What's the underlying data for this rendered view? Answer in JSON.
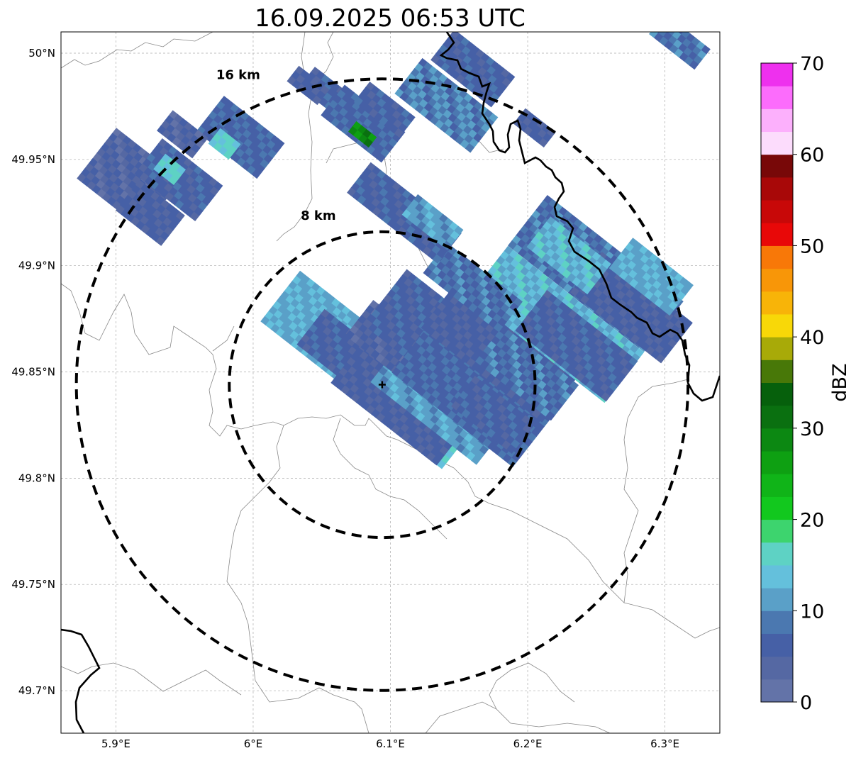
{
  "title": "16.09.2025 06:53 UTC",
  "map": {
    "lon_range": [
      5.86,
      6.34
    ],
    "lat_range": [
      49.68,
      50.01
    ],
    "x_ticks": [
      {
        "value": 5.9,
        "label": "5.9°E"
      },
      {
        "value": 6.0,
        "label": "6°E"
      },
      {
        "value": 6.1,
        "label": "6.1°E"
      },
      {
        "value": 6.2,
        "label": "6.2°E"
      },
      {
        "value": 6.3,
        "label": "6.3°E"
      }
    ],
    "y_ticks": [
      {
        "value": 50.0,
        "label": "50°N"
      },
      {
        "value": 49.95,
        "label": "49.95°N"
      },
      {
        "value": 49.9,
        "label": "49.9°N"
      },
      {
        "value": 49.85,
        "label": "49.85°N"
      },
      {
        "value": 49.8,
        "label": "49.8°N"
      },
      {
        "value": 49.75,
        "label": "49.75°N"
      },
      {
        "value": 49.7,
        "label": "49.7°N"
      }
    ],
    "radar_center": {
      "lon": 6.094,
      "lat": 49.844
    },
    "rings": [
      {
        "radius_km": 8,
        "label": "8 km"
      },
      {
        "radius_km": 16,
        "label": "16 km"
      }
    ]
  },
  "colorbar": {
    "label": "dBZ",
    "ticks": [
      "0",
      "10",
      "20",
      "30",
      "40",
      "50",
      "60",
      "70"
    ],
    "colors": [
      "#6373a8",
      "#5568a3",
      "#4660a6",
      "#4b78b0",
      "#5aa0c8",
      "#64c0dc",
      "#5ed2c4",
      "#3dd46e",
      "#12c81e",
      "#10b418",
      "#0ea012",
      "#0c8812",
      "#0a7010",
      "#06600c",
      "#487808",
      "#a8aa08",
      "#f8d808",
      "#f8b408",
      "#f89608",
      "#f87808",
      "#e80808",
      "#c80808",
      "#a80808",
      "#780808",
      "#fcdcfc",
      "#fcb0fc",
      "#fc6cfc",
      "#ee30ee"
    ]
  },
  "echoes": [
    {
      "lon": 6.085,
      "lat": 49.852,
      "dbz": 12,
      "len_km": 12,
      "wid_km": 3.5
    },
    {
      "lon": 6.07,
      "lat": 49.858,
      "dbz": 6,
      "len_km": 5,
      "wid_km": 2.2
    },
    {
      "lon": 6.115,
      "lat": 49.83,
      "dbz": 14,
      "len_km": 6,
      "wid_km": 2.2
    },
    {
      "lon": 6.11,
      "lat": 49.838,
      "dbz": 5,
      "len_km": 7,
      "wid_km": 3.2
    },
    {
      "lon": 6.135,
      "lat": 49.835,
      "dbz": 11,
      "len_km": 7,
      "wid_km": 2.8
    },
    {
      "lon": 6.1,
      "lat": 49.865,
      "dbz": 4,
      "len_km": 4,
      "wid_km": 2.2
    },
    {
      "lon": 6.145,
      "lat": 49.86,
      "dbz": 6,
      "len_km": 9,
      "wid_km": 3.8
    },
    {
      "lon": 6.16,
      "lat": 49.84,
      "dbz": 7,
      "len_km": 8,
      "wid_km": 3.2
    },
    {
      "lon": 6.18,
      "lat": 49.86,
      "dbz": 5,
      "len_km": 8,
      "wid_km": 3.5
    },
    {
      "lon": 6.2,
      "lat": 49.85,
      "dbz": 8,
      "len_km": 5,
      "wid_km": 2.2
    },
    {
      "lon": 6.175,
      "lat": 49.83,
      "dbz": 6,
      "len_km": 4,
      "wid_km": 2
    },
    {
      "lon": 6.22,
      "lat": 49.872,
      "dbz": 13,
      "len_km": 9,
      "wid_km": 3.5
    },
    {
      "lon": 6.235,
      "lat": 49.862,
      "dbz": 6,
      "len_km": 6,
      "wid_km": 2.8
    },
    {
      "lon": 6.25,
      "lat": 49.897,
      "dbz": 8,
      "len_km": 9,
      "wid_km": 3.2
    },
    {
      "lon": 6.275,
      "lat": 49.88,
      "dbz": 5,
      "len_km": 6,
      "wid_km": 2.8
    },
    {
      "lon": 6.29,
      "lat": 49.895,
      "dbz": 12,
      "len_km": 4,
      "wid_km": 2
    },
    {
      "lon": 6.23,
      "lat": 49.905,
      "dbz": 13,
      "len_km": 4,
      "wid_km": 2
    },
    {
      "lon": 6.16,
      "lat": 49.89,
      "dbz": 8,
      "len_km": 5,
      "wid_km": 2
    },
    {
      "lon": 6.11,
      "lat": 49.925,
      "dbz": 6,
      "len_km": 6,
      "wid_km": 2
    },
    {
      "lon": 6.13,
      "lat": 49.92,
      "dbz": 11,
      "len_km": 3,
      "wid_km": 1.5
    },
    {
      "lon": 5.91,
      "lat": 49.94,
      "dbz": 4,
      "len_km": 4.5,
      "wid_km": 3.5
    },
    {
      "lon": 5.925,
      "lat": 49.925,
      "dbz": 5,
      "len_km": 3,
      "wid_km": 2
    },
    {
      "lon": 5.945,
      "lat": 49.94,
      "dbz": 6,
      "len_km": 4,
      "wid_km": 2.5
    },
    {
      "lon": 5.94,
      "lat": 49.945,
      "dbz": 15,
      "len_km": 1.5,
      "wid_km": 1
    },
    {
      "lon": 5.99,
      "lat": 49.96,
      "dbz": 7,
      "len_km": 4,
      "wid_km": 2.5
    },
    {
      "lon": 5.98,
      "lat": 49.957,
      "dbz": 15,
      "len_km": 1.5,
      "wid_km": 1
    },
    {
      "lon": 5.95,
      "lat": 49.962,
      "dbz": 4,
      "len_km": 2.5,
      "wid_km": 1.2
    },
    {
      "lon": 6.055,
      "lat": 49.98,
      "dbz": 6,
      "len_km": 3,
      "wid_km": 1.5
    },
    {
      "lon": 6.08,
      "lat": 49.967,
      "dbz": 7,
      "len_km": 4,
      "wid_km": 2
    },
    {
      "lon": 6.08,
      "lat": 49.961,
      "dbz": 28,
      "len_km": 1.5,
      "wid_km": 0.8
    },
    {
      "lon": 6.095,
      "lat": 49.973,
      "dbz": 6,
      "len_km": 3,
      "wid_km": 1.5
    },
    {
      "lon": 6.04,
      "lat": 49.985,
      "dbz": 5,
      "len_km": 2,
      "wid_km": 1
    },
    {
      "lon": 6.14,
      "lat": 49.975,
      "dbz": 9,
      "len_km": 5,
      "wid_km": 2.5
    },
    {
      "lon": 6.16,
      "lat": 49.993,
      "dbz": 6,
      "len_km": 4,
      "wid_km": 2
    },
    {
      "lon": 6.205,
      "lat": 49.965,
      "dbz": 5,
      "len_km": 2,
      "wid_km": 1
    },
    {
      "lon": 6.31,
      "lat": 50.005,
      "dbz": 8,
      "len_km": 3,
      "wid_km": 1.5
    }
  ]
}
